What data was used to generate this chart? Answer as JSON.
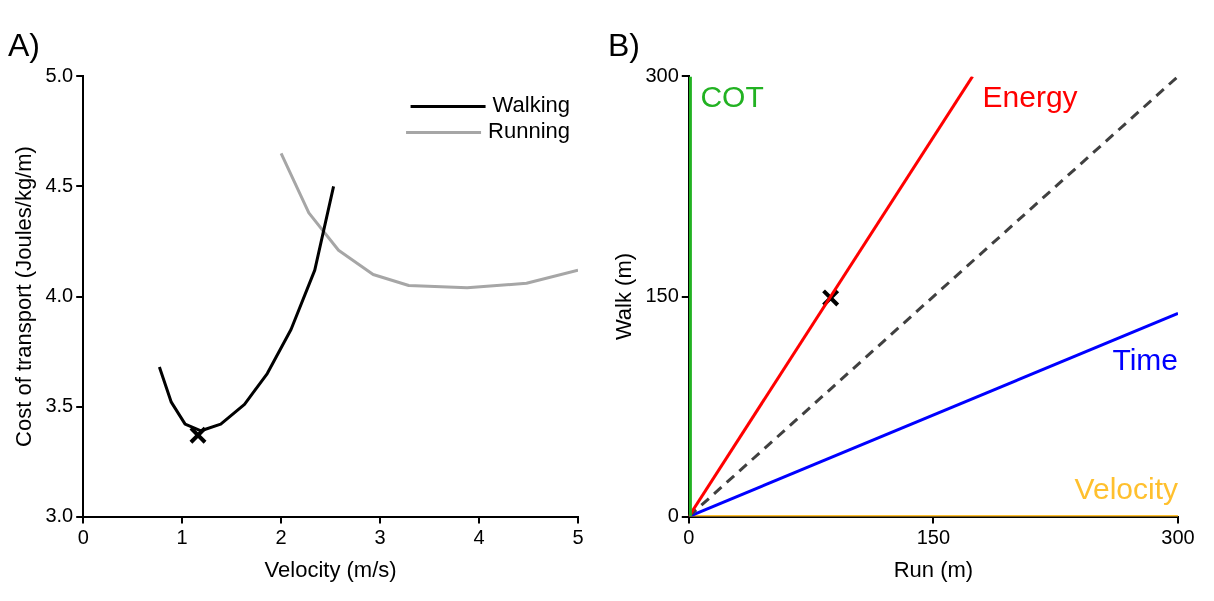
{
  "chart_data": [
    {
      "type": "line",
      "title": "A)",
      "xlabel": "Velocity (m/s)",
      "ylabel": "Cost of transport (Joules/kg/m)",
      "xlim": [
        0,
        5
      ],
      "ylim": [
        3.0,
        5.0
      ],
      "xticks": [
        0,
        1,
        2,
        3,
        4,
        5
      ],
      "yticks": [
        {
          "value": 3,
          "label": "3.0"
        },
        3.5,
        {
          "value": 4,
          "label": "4.0"
        },
        4.5,
        {
          "value": 5,
          "label": "5.0"
        }
      ],
      "grid": false,
      "legend": "top right",
      "line_style": "solid",
      "marker": "none",
      "series": [
        {
          "name": "Walking",
          "color": "#000000",
          "x": [
            0.77,
            0.89,
            1.03,
            1.19,
            1.39,
            1.63,
            1.86,
            2.1,
            2.34,
            2.53
          ],
          "values": [
            3.68,
            3.52,
            3.42,
            3.39,
            3.42,
            3.51,
            3.65,
            3.85,
            4.12,
            4.5
          ]
        },
        {
          "name": "Running",
          "color": "#a6a6a6",
          "x": [
            2.0,
            2.28,
            2.58,
            2.93,
            3.29,
            3.88,
            4.48,
            5.0
          ],
          "values": [
            4.65,
            4.38,
            4.21,
            4.1,
            4.05,
            4.04,
            4.06,
            4.12
          ]
        },
        {
          "type": "scatter",
          "marker": "cross",
          "color": "#000000",
          "x": [
            1.16
          ],
          "values": [
            3.37
          ]
        }
      ]
    },
    {
      "type": "line",
      "title": "B)",
      "xlabel": "Run (m)",
      "ylabel": "Walk (m)",
      "xlim": [
        0,
        300
      ],
      "ylim": [
        0,
        300
      ],
      "xticks": [
        0,
        150,
        300
      ],
      "yticks": [
        0,
        150,
        300
      ],
      "grid": false,
      "legend": false,
      "line_style": "solid",
      "marker": "none",
      "series": [
        {
          "name": "COT",
          "color": "#22b222",
          "x": [
            1,
            1
          ],
          "values": [
            0,
            300
          ]
        },
        {
          "name": "Energy",
          "color": "#ff0000",
          "x": [
            0,
            174
          ],
          "values": [
            0,
            300
          ]
        },
        {
          "color": "#404040",
          "line_style": "dashed",
          "x": [
            0,
            300
          ],
          "values": [
            0,
            300
          ]
        },
        {
          "name": "Time",
          "color": "#0000ff",
          "x": [
            0,
            300
          ],
          "values": [
            0,
            138.5
          ]
        },
        {
          "name": "Velocity",
          "color": "#ffc02e",
          "x": [
            0,
            300
          ],
          "values": [
            0,
            0
          ]
        },
        {
          "type": "scatter",
          "marker": "cross",
          "color": "#000000",
          "x": [
            87
          ],
          "values": [
            149
          ]
        }
      ]
    }
  ]
}
